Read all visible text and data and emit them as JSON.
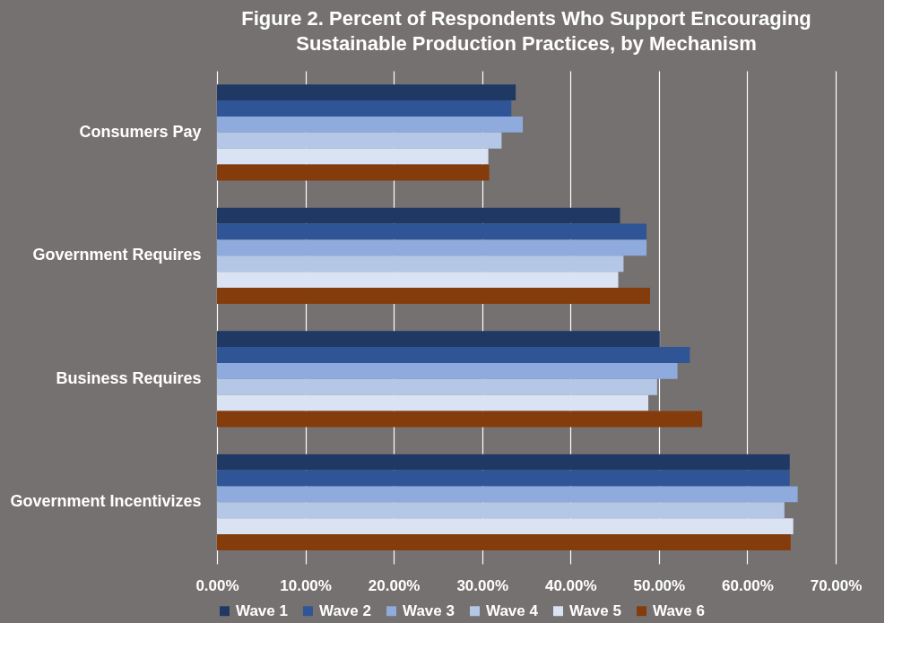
{
  "chart_data": {
    "type": "bar",
    "orientation": "horizontal",
    "title": "Figure 2. Percent of Respondents Who Support Encouraging\nSustainable Production Practices, by Mechanism",
    "categories": [
      "Consumers Pay",
      "Government Requires",
      "Business Requires",
      "Government Incentivizes"
    ],
    "series": [
      {
        "name": "Wave 1",
        "color": "#203864",
        "values": [
          33.8,
          45.6,
          50.1,
          64.8
        ]
      },
      {
        "name": "Wave 2",
        "color": "#2f5597",
        "values": [
          33.3,
          48.6,
          53.5,
          64.8
        ]
      },
      {
        "name": "Wave 3",
        "color": "#8faadc",
        "values": [
          34.6,
          48.6,
          52.1,
          65.7
        ]
      },
      {
        "name": "Wave 4",
        "color": "#b4c7e7",
        "values": [
          32.2,
          46.0,
          49.8,
          64.2
        ]
      },
      {
        "name": "Wave 5",
        "color": "#dae3f3",
        "values": [
          30.7,
          45.4,
          48.8,
          65.2
        ]
      },
      {
        "name": "Wave 6",
        "color": "#843c0c",
        "values": [
          30.8,
          49.0,
          54.9,
          64.9
        ]
      }
    ],
    "xlim": [
      0,
      70
    ],
    "xticks": [
      {
        "value": 0,
        "label": "0.00%"
      },
      {
        "value": 10,
        "label": "10.00%"
      },
      {
        "value": 20,
        "label": "20.00%"
      },
      {
        "value": 30,
        "label": "30.00%"
      },
      {
        "value": 40,
        "label": "40.00%"
      },
      {
        "value": 50,
        "label": "50.00%"
      },
      {
        "value": 60,
        "label": "60.00%"
      },
      {
        "value": 70,
        "label": "70.00%"
      }
    ],
    "grid": "x",
    "legend": "bottom"
  }
}
